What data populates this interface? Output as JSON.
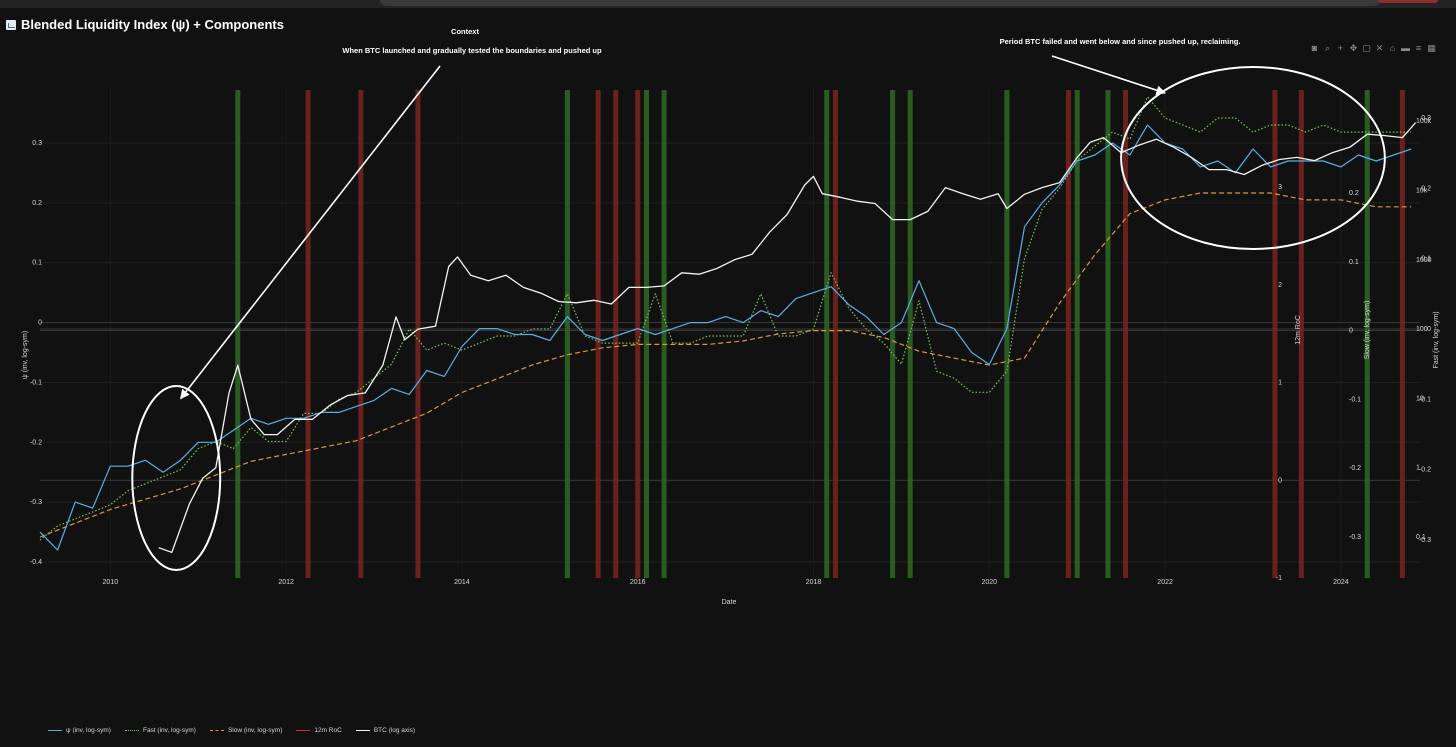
{
  "title": "Blended Liquidity Index (ψ) + Components",
  "toolbar_icons": [
    "camera-icon",
    "zoom-icon",
    "plus-icon",
    "pan-icon",
    "box-select-icon",
    "lasso-icon",
    "autoscale-icon",
    "hover-closest-icon",
    "hover-compare-icon",
    "logo-icon"
  ],
  "colors": {
    "psi": "#5aaee6",
    "fast": "#78c65a",
    "slow": "#d69a3a",
    "roc": "#b83a35",
    "btc": "#f2f2f2",
    "green_band": "#2f6a26",
    "red_band": "#7a2521"
  },
  "chart_data": {
    "type": "line",
    "title": "Blended Liquidity Index (ψ) + Components",
    "xlabel": "Date",
    "x_ticks": [
      "2010",
      "2012",
      "2014",
      "2016",
      "2018",
      "2020",
      "2022",
      "2024"
    ],
    "xlim": [
      2009.2,
      2024.9
    ],
    "axes": {
      "psi": {
        "title": "ψ (inv, log-sym)",
        "ticks": [
          "-0.4",
          "-0.3",
          "-0.2",
          "-0.1",
          "0",
          "0.1",
          "0.2",
          "0.3"
        ],
        "range": [
          -0.4,
          0.3
        ]
      },
      "roc": {
        "title": "12m RoC",
        "ticks": [
          "-1",
          "0",
          "1",
          "2",
          "3"
        ],
        "range": [
          -1,
          3
        ]
      },
      "slow": {
        "title": "Slow (inv, log-sym)",
        "ticks": [
          "-0.3",
          "-0.2",
          "-0.1",
          "0",
          "0.1",
          "0.2"
        ],
        "range": [
          -0.3,
          0.2
        ]
      },
      "fast": {
        "title": "Fast (inv, log-sym)",
        "ticks": [
          "-0.3",
          "-0.2",
          "-0.1",
          "0",
          "0.1",
          "0.2",
          "0.3"
        ],
        "range": [
          -0.3,
          0.3
        ]
      },
      "btc": {
        "title": "BTC (log axis)",
        "ticks": [
          "0.1",
          "1",
          "10",
          "100",
          "1000",
          "10k",
          "100k"
        ],
        "scale": "log"
      }
    },
    "series": [
      {
        "name": "ψ (inv, log-sym)",
        "style": "solid",
        "color": "psi",
        "axis": "psi",
        "x": [
          2009.2,
          2009.4,
          2009.6,
          2009.8,
          2010.0,
          2010.2,
          2010.4,
          2010.6,
          2010.8,
          2011.0,
          2011.2,
          2011.4,
          2011.6,
          2011.8,
          2012.0,
          2012.2,
          2012.4,
          2012.6,
          2012.8,
          2013.0,
          2013.2,
          2013.4,
          2013.6,
          2013.8,
          2014.0,
          2014.2,
          2014.4,
          2014.6,
          2014.8,
          2015.0,
          2015.2,
          2015.4,
          2015.6,
          2015.8,
          2016.0,
          2016.2,
          2016.4,
          2016.6,
          2016.8,
          2017.0,
          2017.2,
          2017.4,
          2017.6,
          2017.8,
          2018.0,
          2018.2,
          2018.4,
          2018.6,
          2018.8,
          2019.0,
          2019.2,
          2019.4,
          2019.6,
          2019.8,
          2020.0,
          2020.2,
          2020.4,
          2020.6,
          2020.8,
          2021.0,
          2021.2,
          2021.4,
          2021.6,
          2021.8,
          2022.0,
          2022.2,
          2022.4,
          2022.6,
          2022.8,
          2023.0,
          2023.2,
          2023.4,
          2023.6,
          2023.8,
          2024.0,
          2024.2,
          2024.4,
          2024.6,
          2024.8
        ],
        "y": [
          -0.35,
          -0.38,
          -0.3,
          -0.31,
          -0.24,
          -0.24,
          -0.23,
          -0.25,
          -0.23,
          -0.2,
          -0.2,
          -0.18,
          -0.16,
          -0.17,
          -0.16,
          -0.16,
          -0.15,
          -0.15,
          -0.14,
          -0.13,
          -0.11,
          -0.12,
          -0.08,
          -0.09,
          -0.04,
          -0.01,
          -0.01,
          -0.02,
          -0.02,
          -0.03,
          0.01,
          -0.02,
          -0.03,
          -0.02,
          -0.01,
          -0.02,
          -0.01,
          0.0,
          0.0,
          0.01,
          0.0,
          0.02,
          0.01,
          0.04,
          0.05,
          0.06,
          0.03,
          0.01,
          -0.02,
          0.0,
          0.07,
          0.0,
          -0.01,
          -0.05,
          -0.07,
          -0.01,
          0.16,
          0.2,
          0.23,
          0.27,
          0.28,
          0.3,
          0.28,
          0.33,
          0.3,
          0.29,
          0.26,
          0.27,
          0.25,
          0.29,
          0.26,
          0.27,
          0.27,
          0.27,
          0.26,
          0.28,
          0.27,
          0.28,
          0.29
        ]
      },
      {
        "name": "Fast (inv, log-sym)",
        "style": "dotted",
        "color": "fast",
        "axis": "fast",
        "x": [
          2009.2,
          2009.4,
          2009.6,
          2009.8,
          2010.0,
          2010.2,
          2010.4,
          2010.6,
          2010.8,
          2011.0,
          2011.2,
          2011.4,
          2011.6,
          2011.8,
          2012.0,
          2012.2,
          2012.4,
          2012.6,
          2012.8,
          2013.0,
          2013.2,
          2013.4,
          2013.6,
          2013.8,
          2014.0,
          2014.2,
          2014.4,
          2014.6,
          2014.8,
          2015.0,
          2015.2,
          2015.4,
          2015.6,
          2015.8,
          2016.0,
          2016.2,
          2016.4,
          2016.6,
          2016.8,
          2017.0,
          2017.2,
          2017.4,
          2017.6,
          2017.8,
          2018.0,
          2018.2,
          2018.4,
          2018.6,
          2018.8,
          2019.0,
          2019.2,
          2019.4,
          2019.6,
          2019.8,
          2020.0,
          2020.2,
          2020.4,
          2020.6,
          2020.8,
          2021.0,
          2021.2,
          2021.4,
          2021.6,
          2021.8,
          2022.0,
          2022.2,
          2022.4,
          2022.6,
          2022.8,
          2023.0,
          2023.2,
          2023.4,
          2023.6,
          2023.8,
          2024.0,
          2024.2,
          2024.4,
          2024.6,
          2024.8
        ],
        "y": [
          -0.3,
          -0.28,
          -0.27,
          -0.26,
          -0.25,
          -0.23,
          -0.22,
          -0.21,
          -0.2,
          -0.17,
          -0.16,
          -0.17,
          -0.14,
          -0.16,
          -0.16,
          -0.12,
          -0.12,
          -0.1,
          -0.09,
          -0.07,
          -0.05,
          0.0,
          -0.03,
          -0.02,
          -0.03,
          -0.02,
          -0.01,
          -0.01,
          0.0,
          0.0,
          0.05,
          -0.01,
          -0.02,
          -0.02,
          -0.02,
          0.05,
          -0.02,
          -0.02,
          -0.01,
          -0.01,
          -0.01,
          0.05,
          -0.01,
          -0.01,
          0.0,
          0.08,
          0.03,
          0.0,
          -0.02,
          -0.05,
          0.04,
          -0.06,
          -0.07,
          -0.09,
          -0.09,
          -0.06,
          0.1,
          0.17,
          0.2,
          0.24,
          0.26,
          0.28,
          0.27,
          0.33,
          0.3,
          0.29,
          0.28,
          0.3,
          0.3,
          0.28,
          0.29,
          0.29,
          0.28,
          0.29,
          0.28,
          0.28,
          0.28,
          0.28,
          0.28
        ]
      },
      {
        "name": "Slow (inv, log-sym)",
        "style": "dashed",
        "color": "slow",
        "axis": "slow",
        "x": [
          2009.2,
          2009.6,
          2010.0,
          2010.4,
          2010.8,
          2011.2,
          2011.6,
          2012.0,
          2012.4,
          2012.8,
          2013.2,
          2013.6,
          2014.0,
          2014.4,
          2014.8,
          2015.2,
          2015.6,
          2016.0,
          2016.4,
          2016.8,
          2017.2,
          2017.6,
          2018.0,
          2018.4,
          2018.8,
          2019.2,
          2019.6,
          2020.0,
          2020.4,
          2020.8,
          2021.2,
          2021.6,
          2022.0,
          2022.4,
          2022.8,
          2023.2,
          2023.6,
          2024.0,
          2024.4,
          2024.8
        ],
        "y": [
          -0.3,
          -0.28,
          -0.26,
          -0.245,
          -0.23,
          -0.21,
          -0.19,
          -0.18,
          -0.17,
          -0.16,
          -0.14,
          -0.12,
          -0.09,
          -0.07,
          -0.05,
          -0.035,
          -0.025,
          -0.02,
          -0.02,
          -0.02,
          -0.015,
          -0.005,
          0.0,
          0.0,
          -0.01,
          -0.03,
          -0.04,
          -0.05,
          -0.04,
          0.04,
          0.11,
          0.17,
          0.19,
          0.2,
          0.2,
          0.2,
          0.19,
          0.19,
          0.18,
          0.18
        ]
      },
      {
        "name": "BTC (log axis)",
        "style": "solid",
        "color": "btc",
        "axis": "btc",
        "x": [
          2010.55,
          2010.7,
          2010.9,
          2011.05,
          2011.2,
          2011.35,
          2011.45,
          2011.6,
          2011.75,
          2011.9,
          2012.1,
          2012.3,
          2012.5,
          2012.7,
          2012.9,
          2013.1,
          2013.25,
          2013.35,
          2013.5,
          2013.7,
          2013.85,
          2013.95,
          2014.1,
          2014.3,
          2014.5,
          2014.7,
          2014.9,
          2015.1,
          2015.3,
          2015.5,
          2015.7,
          2015.9,
          2016.1,
          2016.3,
          2016.5,
          2016.7,
          2016.9,
          2017.1,
          2017.3,
          2017.5,
          2017.7,
          2017.9,
          2018.0,
          2018.1,
          2018.3,
          2018.5,
          2018.7,
          2018.9,
          2019.1,
          2019.3,
          2019.5,
          2019.7,
          2019.9,
          2020.1,
          2020.2,
          2020.4,
          2020.6,
          2020.8,
          2021.0,
          2021.15,
          2021.3,
          2021.5,
          2021.7,
          2021.9,
          2022.1,
          2022.3,
          2022.5,
          2022.7,
          2022.9,
          2023.1,
          2023.3,
          2023.5,
          2023.7,
          2023.9,
          2024.1,
          2024.3,
          2024.5,
          2024.7,
          2024.85
        ],
        "y": [
          0.07,
          0.06,
          0.3,
          0.7,
          1.0,
          12,
          30,
          5,
          3,
          3,
          5,
          5,
          8,
          11,
          12,
          30,
          150,
          70,
          100,
          110,
          800,
          1100,
          600,
          500,
          600,
          400,
          330,
          250,
          240,
          260,
          230,
          400,
          400,
          420,
          650,
          620,
          750,
          1000,
          1200,
          2500,
          4500,
          12000,
          16000,
          9000,
          8000,
          7000,
          6500,
          3800,
          3800,
          5000,
          11000,
          9000,
          7500,
          9000,
          5500,
          8800,
          11000,
          13000,
          30000,
          50000,
          58000,
          35000,
          45000,
          55000,
          42000,
          30000,
          20000,
          20000,
          17000,
          23000,
          28000,
          30000,
          27000,
          35000,
          42000,
          65000,
          62000,
          58000,
          95000
        ]
      }
    ],
    "roc_bands": {
      "axis": "roc",
      "green": [
        2011.45,
        2015.2,
        2016.1,
        2016.3,
        2018.15,
        2018.9,
        2019.1,
        2020.2,
        2021.0,
        2021.35,
        2024.3
      ],
      "red": [
        2012.25,
        2012.85,
        2013.5,
        2015.55,
        2015.75,
        2016.0,
        2018.25,
        2020.9,
        2021.55,
        2023.25,
        2023.55,
        2024.7
      ]
    },
    "annotations": [
      {
        "title": "Context",
        "text": "When BTC launched and gradually tested the boundaries and pushed up",
        "ellipse_x": [
          2010.25,
          2011.25
        ],
        "arrow_to": [
          2010.8,
          -0.01
        ]
      },
      {
        "title": "",
        "text": "Period BTC failed and went below and since pushed up, reclaiming.",
        "ellipse_x": [
          2021.5,
          2024.5
        ],
        "arrow_to": [
          2022.0,
          0.3
        ]
      }
    ]
  },
  "legend": [
    {
      "label": "ψ (inv, log-sym)",
      "color": "psi",
      "style": "solid"
    },
    {
      "label": "Fast (inv, log-sym)",
      "color": "fast",
      "style": "dotted"
    },
    {
      "label": "Slow (inv, log-sym)",
      "color": "slow",
      "style": "dashed"
    },
    {
      "label": "12m RoC",
      "color": "roc",
      "style": "solid"
    },
    {
      "label": "BTC (log axis)",
      "color": "btc",
      "style": "solid"
    }
  ]
}
